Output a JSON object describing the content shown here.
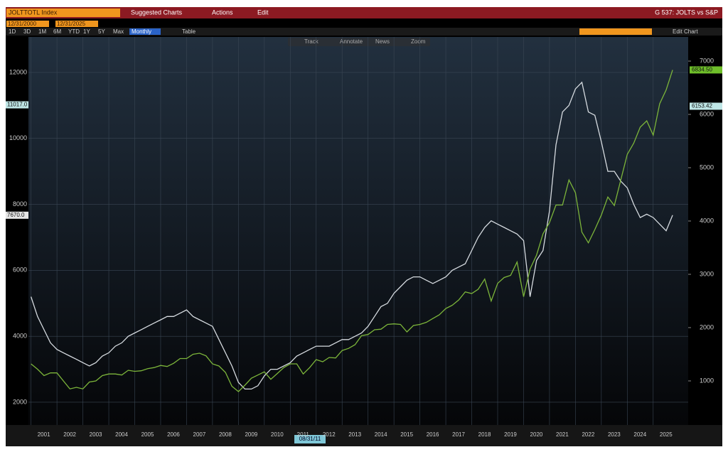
{
  "header": {
    "security": "JOLTTOTL Index",
    "menu": [
      "Suggested Charts",
      "Actions",
      "Edit"
    ],
    "chart_name": "G 537: JOLTS vs S&P"
  },
  "toolbar": {
    "start_date": "12/31/2000",
    "end_date": "12/31/2025",
    "periods": [
      "1D",
      "3D",
      "1M",
      "6M",
      "YTD",
      "1Y",
      "5Y",
      "Max"
    ],
    "frequency": "Monthly",
    "table": "Table",
    "edit_chart": "Edit Chart",
    "tools": [
      "Track",
      "Annotate",
      "News",
      "Zoom"
    ]
  },
  "chart_data": {
    "type": "line",
    "crosshair_date": "08/31/11",
    "x": [
      2001,
      2001.25,
      2001.5,
      2001.75,
      2002,
      2002.25,
      2002.5,
      2002.75,
      2003,
      2003.25,
      2003.5,
      2003.75,
      2004,
      2004.25,
      2004.5,
      2004.75,
      2005,
      2005.25,
      2005.5,
      2005.75,
      2006,
      2006.25,
      2006.5,
      2006.75,
      2007,
      2007.25,
      2007.5,
      2007.75,
      2008,
      2008.25,
      2008.5,
      2008.75,
      2009,
      2009.25,
      2009.5,
      2009.75,
      2010,
      2010.25,
      2010.5,
      2010.75,
      2011,
      2011.25,
      2011.5,
      2011.75,
      2012,
      2012.25,
      2012.5,
      2012.75,
      2013,
      2013.25,
      2013.5,
      2013.75,
      2014,
      2014.25,
      2014.5,
      2014.75,
      2015,
      2015.25,
      2015.5,
      2015.75,
      2016,
      2016.25,
      2016.5,
      2016.75,
      2017,
      2017.25,
      2017.5,
      2017.75,
      2018,
      2018.25,
      2018.5,
      2018.75,
      2019,
      2019.25,
      2019.5,
      2019.75,
      2020,
      2020.25,
      2020.5,
      2020.75,
      2021,
      2021.25,
      2021.5,
      2021.75,
      2022,
      2022.25,
      2022.5,
      2022.75,
      2023,
      2023.25,
      2023.5,
      2023.75,
      2024,
      2024.25,
      2024.5,
      2024.75,
      2025,
      2025.25,
      2025.5,
      2025.75
    ],
    "series": [
      {
        "color": "#d6dbe0",
        "axis": "y",
        "values": [
          5200,
          4600,
          4200,
          3800,
          3600,
          3500,
          3400,
          3300,
          3200,
          3100,
          3200,
          3400,
          3500,
          3700,
          3800,
          4000,
          4100,
          4200,
          4300,
          4400,
          4500,
          4600,
          4600,
          4700,
          4800,
          4600,
          4500,
          4400,
          4300,
          3900,
          3500,
          3100,
          2600,
          2400,
          2400,
          2500,
          2800,
          3000,
          3000,
          3100,
          3200,
          3400,
          3500,
          3600,
          3700,
          3700,
          3700,
          3800,
          3900,
          3900,
          4000,
          4100,
          4300,
          4600,
          4900,
          5000,
          5300,
          5500,
          5700,
          5800,
          5800,
          5700,
          5600,
          5700,
          5800,
          6000,
          6100,
          6200,
          6600,
          7000,
          7300,
          7500,
          7400,
          7300,
          7200,
          7100,
          6900,
          5200,
          6300,
          6600,
          7800,
          9800,
          10800,
          11000,
          11500,
          11700,
          10800,
          10700,
          9900,
          9000,
          9000,
          8700,
          8500,
          8000,
          7600,
          7700,
          7600,
          7400,
          7200,
          7670
        ]
      },
      {
        "color": "#7cb53a",
        "axis": "y2",
        "values": [
          1320,
          1220,
          1100,
          1150,
          1150,
          1000,
          850,
          880,
          850,
          980,
          1000,
          1100,
          1130,
          1130,
          1110,
          1200,
          1180,
          1190,
          1230,
          1250,
          1290,
          1270,
          1330,
          1420,
          1420,
          1500,
          1520,
          1470,
          1320,
          1280,
          1160,
          900,
          800,
          920,
          1050,
          1110,
          1170,
          1030,
          1140,
          1250,
          1320,
          1320,
          1130,
          1250,
          1400,
          1360,
          1440,
          1430,
          1570,
          1610,
          1680,
          1850,
          1870,
          1960,
          1970,
          2060,
          2070,
          2060,
          1920,
          2040,
          2060,
          2100,
          2170,
          2240,
          2360,
          2420,
          2520,
          2670,
          2640,
          2720,
          2910,
          2500,
          2830,
          2940,
          2980,
          3230,
          2580,
          3100,
          3360,
          3760,
          3970,
          4300,
          4300,
          4770,
          4530,
          3790,
          3590,
          3840,
          4110,
          4450,
          4290,
          4770,
          5250,
          5460,
          5760,
          5880,
          5610,
          6200,
          6460,
          6834.5
        ]
      }
    ],
    "xlim": [
      2000.9,
      2026.35
    ],
    "xticks": [
      2001,
      2002,
      2003,
      2004,
      2005,
      2006,
      2007,
      2008,
      2009,
      2010,
      2011,
      2012,
      2013,
      2014,
      2015,
      2016,
      2017,
      2018,
      2019,
      2020,
      2021,
      2022,
      2023,
      2024,
      2025
    ],
    "ylim": [
      1310,
      13075
    ],
    "yticks": [
      2000,
      4000,
      6000,
      8000,
      10000,
      12000
    ],
    "y2lim": [
      173,
      7453
    ],
    "y2ticks": [
      1000,
      2000,
      3000,
      4000,
      5000,
      6000,
      7000
    ],
    "grid": true,
    "flags": [
      {
        "label": "11017.0",
        "value": 11017,
        "axis": "y",
        "color": "#bfe6e6"
      },
      {
        "label": "7670.0",
        "value": 7670,
        "axis": "y",
        "color": "#e6e6e6"
      },
      {
        "label": "6834.50",
        "value": 6834.5,
        "axis": "y2",
        "color": "#6fbf2a"
      },
      {
        "label": "6153.42",
        "value": 6153.42,
        "axis": "y2",
        "color": "#bfe6e6"
      }
    ]
  }
}
